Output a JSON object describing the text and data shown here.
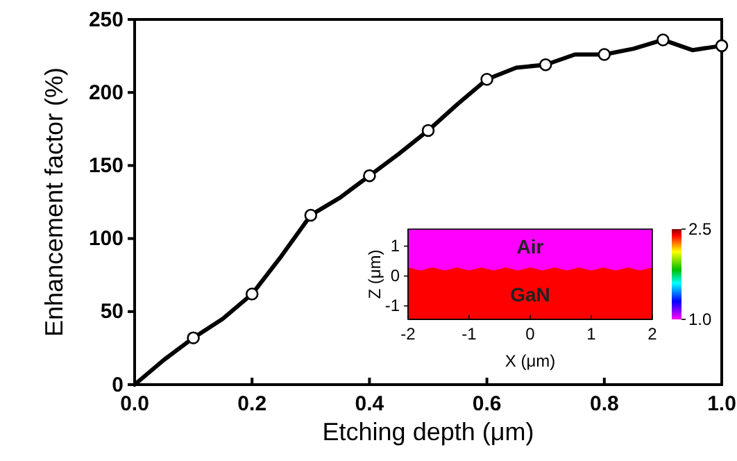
{
  "chart_data": [
    {
      "type": "line",
      "xlabel": "Etching depth (μm)",
      "ylabel": "Enhancement factor (%)",
      "xlim": [
        0,
        1
      ],
      "xticks": [
        {
          "value": 0,
          "label": "0.0"
        },
        {
          "value": 0.2,
          "label": "0.2"
        },
        {
          "value": 0.4,
          "label": "0.4"
        },
        {
          "value": 0.6,
          "label": "0.6"
        },
        {
          "value": 0.8,
          "label": "0.8"
        },
        {
          "value": 1,
          "label": "1.0"
        }
      ],
      "ylim": [
        0,
        250
      ],
      "yticks": [
        0,
        50,
        100,
        150,
        200,
        250
      ],
      "grid": false,
      "series": [
        {
          "type": "line",
          "color": "#000000",
          "marker": "none",
          "line_style": "solid",
          "x": [
            0,
            0.05,
            0.1,
            0.15,
            0.2,
            0.25,
            0.3,
            0.35,
            0.4,
            0.45,
            0.5,
            0.55,
            0.6,
            0.65,
            0.7,
            0.75,
            0.8,
            0.85,
            0.9,
            0.95,
            1.0
          ],
          "values": [
            0,
            17,
            32,
            45,
            62,
            88,
            116,
            128,
            143,
            158,
            174,
            192,
            209,
            217,
            219,
            226,
            226,
            230,
            236,
            229,
            232
          ]
        },
        {
          "type": "scatter",
          "color": "#000000",
          "marker": "circle",
          "x": [
            0.1,
            0.2,
            0.3,
            0.4,
            0.5,
            0.6,
            0.7,
            0.8,
            0.9,
            1.0
          ],
          "values": [
            32,
            62,
            116,
            143,
            174,
            209,
            219,
            226,
            236,
            232
          ]
        }
      ]
    },
    {
      "type": "line",
      "xlabel": "X (μm)",
      "ylabel": "Z (μm)",
      "xlim": [
        -2,
        2
      ],
      "xticks": [
        -2,
        -1,
        0,
        1,
        2
      ],
      "ylim": [
        -1.45,
        1.57
      ],
      "yticks": [
        -1,
        0,
        1
      ],
      "clim": [
        1.0,
        2.5
      ],
      "cticks": [
        {
          "value": 1,
          "label": "1.0"
        },
        {
          "value": 2.5,
          "label": "2.5"
        }
      ],
      "series": [
        {
          "name": "GaN",
          "color": "#ff0000",
          "x": [
            -2,
            -1.8,
            -1.6,
            -1.4,
            -1.2,
            -1,
            -0.8,
            -0.6,
            -0.4,
            -0.2,
            0,
            0.2,
            0.4,
            0.6,
            0.8,
            1,
            1.2,
            1.4,
            1.6,
            1.8,
            2
          ],
          "values": [
            0.25,
            0.15,
            0.25,
            0.15,
            0.25,
            0.15,
            0.25,
            0.15,
            0.25,
            0.15,
            0.25,
            0.15,
            0.25,
            0.15,
            0.25,
            0.15,
            0.25,
            0.15,
            0.25,
            0.15,
            0.25
          ],
          "lower": [
            -1.45,
            -1.45,
            -1.45,
            -1.45,
            -1.45,
            -1.45,
            -1.45,
            -1.45,
            -1.45,
            -1.45,
            -1.45,
            -1.45,
            -1.45,
            -1.45,
            -1.45,
            -1.45,
            -1.45,
            -1.45,
            -1.45,
            -1.45,
            -1.45
          ],
          "upper": [
            0.25,
            0.15,
            0.25,
            0.15,
            0.25,
            0.15,
            0.25,
            0.15,
            0.25,
            0.15,
            0.25,
            0.15,
            0.25,
            0.15,
            0.25,
            0.15,
            0.25,
            0.15,
            0.25,
            0.15,
            0.25
          ]
        }
      ],
      "bands": [
        {
          "axis": "y",
          "from": 0.15,
          "to": 1.57,
          "label": "Air",
          "color": "#ff00ff"
        }
      ]
    }
  ]
}
